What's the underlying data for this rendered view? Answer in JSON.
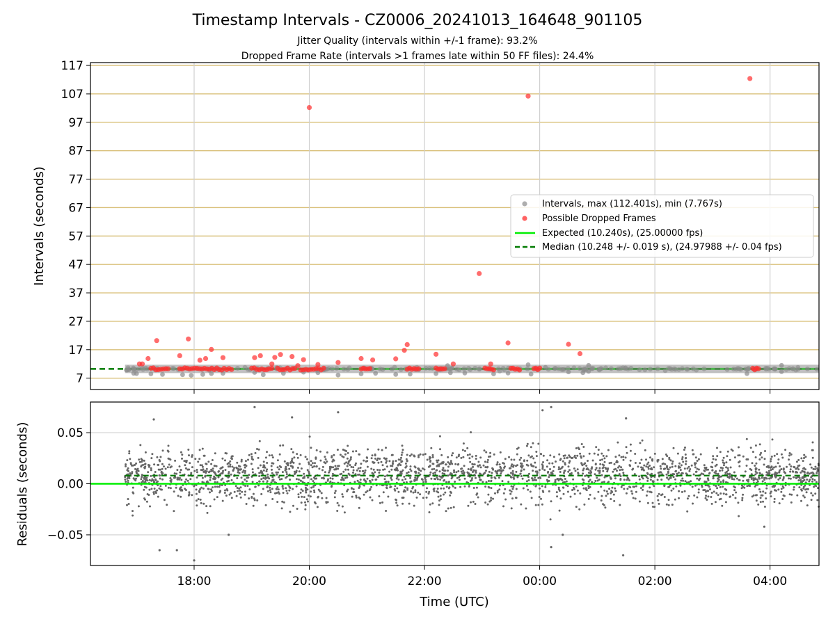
{
  "chart_data": [
    {
      "type": "scatter",
      "title": "Timestamp Intervals - CZ0006_20241013_164648_901105",
      "subtitles": [
        "Jitter Quality (intervals within +/-1 frame): 93.2%",
        "Dropped Frame Rate (intervals >1 frames late within 50 FF files): 24.4%"
      ],
      "ylabel": "Intervals (seconds)",
      "ylim": [
        3,
        118
      ],
      "yticks": [
        7,
        17,
        27,
        37,
        47,
        57,
        67,
        77,
        87,
        97,
        107,
        117
      ],
      "xlim_hours": [
        16.2,
        28.85
      ],
      "xticks_hours": [
        18,
        20,
        22,
        24,
        26,
        28
      ],
      "grid": true,
      "legend_position": "center-right",
      "legend": [
        "Intervals, max (112.401s), min (7.767s)",
        "Possible Dropped Frames",
        "Expected (10.240s), (25.00000 fps)",
        "Median (10.248 +/- 0.019 s), (24.97988 +/- 0.04 fps)"
      ],
      "expected_interval": 10.24,
      "median_interval": 10.248,
      "intervals_max": 112.401,
      "intervals_min": 7.767,
      "dropped_clusters": [
        {
          "x_start": 17.25,
          "x_end": 17.55
        },
        {
          "x_start": 17.75,
          "x_end": 18.65
        },
        {
          "x_start": 19.0,
          "x_end": 19.35
        },
        {
          "x_start": 19.45,
          "x_end": 19.75
        },
        {
          "x_start": 19.85,
          "x_end": 20.25
        },
        {
          "x_start": 20.9,
          "x_end": 21.05
        },
        {
          "x_start": 21.7,
          "x_end": 21.9
        },
        {
          "x_start": 22.2,
          "x_end": 22.35
        },
        {
          "x_start": 23.05,
          "x_end": 23.2
        },
        {
          "x_start": 23.5,
          "x_end": 23.65
        },
        {
          "x_start": 23.9,
          "x_end": 24.0
        },
        {
          "x_start": 27.7,
          "x_end": 27.8
        }
      ],
      "dropped_outliers": [
        {
          "x": 17.05,
          "y": 12.0
        },
        {
          "x": 17.1,
          "y": 12.0
        },
        {
          "x": 17.35,
          "y": 20.2
        },
        {
          "x": 17.2,
          "y": 13.9
        },
        {
          "x": 17.75,
          "y": 14.9
        },
        {
          "x": 17.9,
          "y": 20.8
        },
        {
          "x": 18.1,
          "y": 13.3
        },
        {
          "x": 18.2,
          "y": 13.9
        },
        {
          "x": 18.3,
          "y": 17.1
        },
        {
          "x": 18.5,
          "y": 14.2
        },
        {
          "x": 19.05,
          "y": 14.2
        },
        {
          "x": 19.15,
          "y": 14.9
        },
        {
          "x": 19.35,
          "y": 12.0
        },
        {
          "x": 19.4,
          "y": 14.3
        },
        {
          "x": 19.5,
          "y": 15.3
        },
        {
          "x": 19.7,
          "y": 14.6
        },
        {
          "x": 19.8,
          "y": 11.4
        },
        {
          "x": 19.9,
          "y": 13.5
        },
        {
          "x": 20.0,
          "y": 102.2
        },
        {
          "x": 20.15,
          "y": 11.8
        },
        {
          "x": 20.5,
          "y": 12.5
        },
        {
          "x": 20.9,
          "y": 13.9
        },
        {
          "x": 21.1,
          "y": 13.4
        },
        {
          "x": 21.5,
          "y": 13.8
        },
        {
          "x": 21.65,
          "y": 16.8
        },
        {
          "x": 21.7,
          "y": 18.8
        },
        {
          "x": 22.2,
          "y": 15.4
        },
        {
          "x": 22.5,
          "y": 12.0
        },
        {
          "x": 22.95,
          "y": 43.8
        },
        {
          "x": 23.15,
          "y": 12.0
        },
        {
          "x": 23.45,
          "y": 19.4
        },
        {
          "x": 23.8,
          "y": 106.2
        },
        {
          "x": 24.5,
          "y": 18.9
        },
        {
          "x": 24.7,
          "y": 15.6
        },
        {
          "x": 27.65,
          "y": 112.4
        }
      ],
      "gray_outliers": [
        {
          "x": 16.95,
          "y": 8.7
        },
        {
          "x": 17.0,
          "y": 8.6
        },
        {
          "x": 17.25,
          "y": 8.5
        },
        {
          "x": 17.45,
          "y": 8.3
        },
        {
          "x": 17.8,
          "y": 8.2
        },
        {
          "x": 17.95,
          "y": 8.0
        },
        {
          "x": 18.15,
          "y": 8.3
        },
        {
          "x": 18.3,
          "y": 8.6
        },
        {
          "x": 18.5,
          "y": 8.7
        },
        {
          "x": 19.05,
          "y": 9.0
        },
        {
          "x": 19.2,
          "y": 8.2
        },
        {
          "x": 19.55,
          "y": 8.7
        },
        {
          "x": 19.9,
          "y": 9.1
        },
        {
          "x": 20.15,
          "y": 8.9
        },
        {
          "x": 20.5,
          "y": 8.1
        },
        {
          "x": 20.9,
          "y": 8.5
        },
        {
          "x": 21.15,
          "y": 8.7
        },
        {
          "x": 21.5,
          "y": 8.3
        },
        {
          "x": 21.75,
          "y": 8.4
        },
        {
          "x": 22.2,
          "y": 8.6
        },
        {
          "x": 22.45,
          "y": 8.9
        },
        {
          "x": 22.7,
          "y": 8.8
        },
        {
          "x": 23.2,
          "y": 8.5
        },
        {
          "x": 23.45,
          "y": 8.8
        },
        {
          "x": 23.85,
          "y": 8.4
        },
        {
          "x": 24.1,
          "y": 10.8
        },
        {
          "x": 24.5,
          "y": 9.2
        },
        {
          "x": 24.75,
          "y": 8.9
        },
        {
          "x": 24.85,
          "y": 9.4
        },
        {
          "x": 27.6,
          "y": 8.6
        },
        {
          "x": 28.2,
          "y": 9.3
        },
        {
          "x": 22.4,
          "y": 11.4
        },
        {
          "x": 23.8,
          "y": 11.7
        },
        {
          "x": 24.85,
          "y": 11.5
        },
        {
          "x": 28.2,
          "y": 11.5
        }
      ]
    },
    {
      "type": "scatter",
      "xlabel": "Time (UTC)",
      "ylabel": "Residuals (seconds)",
      "ylim": [
        -0.08,
        0.08
      ],
      "yticks": [
        -0.05,
        0.0,
        0.05
      ],
      "ytick_labels": [
        "−0.05",
        "0.00",
        "0.05"
      ],
      "xticks_hours": [
        18,
        20,
        22,
        24,
        26,
        28
      ],
      "xtick_labels": [
        "18:00",
        "20:00",
        "22:00",
        "00:00",
        "02:00",
        "04:00"
      ],
      "grid": true,
      "expected_residual": 0.0,
      "median_residual": 0.008,
      "residual_x_range_hours": [
        16.8,
        28.85
      ],
      "residual_scatter": 0.019,
      "notable_points": [
        {
          "x": 18.0,
          "y": -0.075
        },
        {
          "x": 19.05,
          "y": 0.075
        },
        {
          "x": 20.5,
          "y": 0.07
        },
        {
          "x": 24.2,
          "y": 0.075
        },
        {
          "x": 24.05,
          "y": 0.072
        },
        {
          "x": 25.45,
          "y": -0.07
        },
        {
          "x": 24.4,
          "y": -0.05
        },
        {
          "x": 17.4,
          "y": -0.065
        },
        {
          "x": 17.7,
          "y": -0.065
        },
        {
          "x": 18.6,
          "y": -0.05
        },
        {
          "x": 27.9,
          "y": -0.042
        },
        {
          "x": 24.2,
          "y": -0.062
        },
        {
          "x": 17.3,
          "y": 0.063
        },
        {
          "x": 19.7,
          "y": 0.065
        },
        {
          "x": 25.5,
          "y": 0.064
        }
      ]
    }
  ],
  "colors": {
    "intervals": "#8c8c8c",
    "dropped": "#ff2d2d",
    "expected": "#00ee00",
    "median": "#007a00",
    "ygrid_top": "#d9c07a",
    "grid": "#cfcfcf",
    "residual_points": "#666666"
  }
}
